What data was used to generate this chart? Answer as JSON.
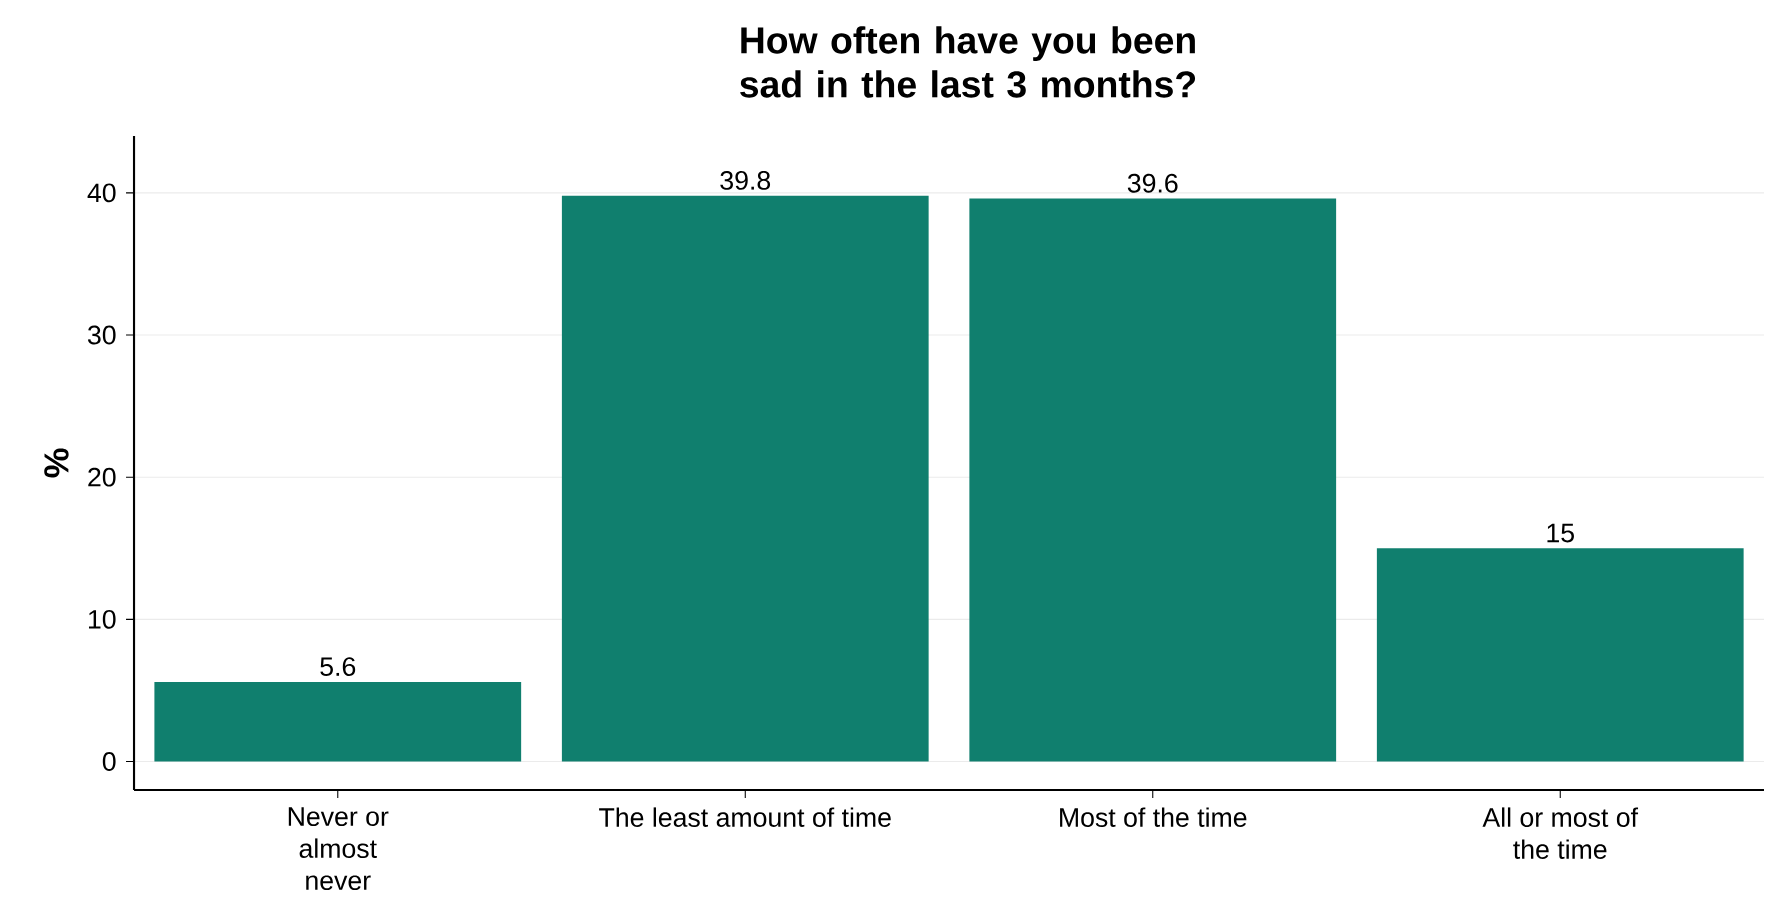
{
  "chart_data": {
    "type": "bar",
    "title": "How often have you been sad in the last 3 months?",
    "ylabel": "%",
    "categories": [
      "Never or almost never",
      "The least amount of time",
      "Most of the time",
      "All or most of the time"
    ],
    "values": [
      5.6,
      39.8,
      39.6,
      15
    ],
    "color": "#107f6e",
    "ylim": [
      -2,
      44
    ],
    "yticks": [
      0,
      10,
      20,
      30,
      40
    ],
    "grid": "y",
    "data_labels": true
  }
}
